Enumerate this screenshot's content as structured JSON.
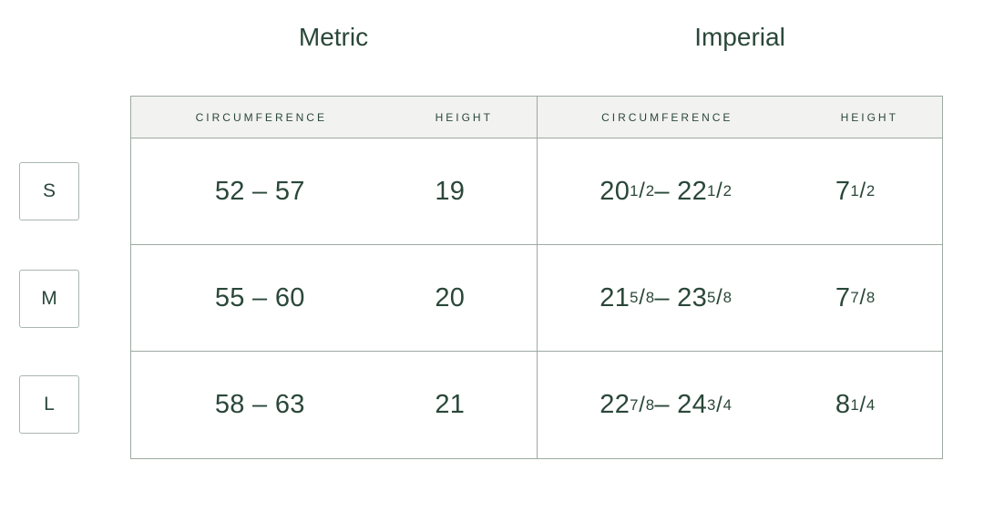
{
  "titles": {
    "metric": "Metric",
    "imperial": "Imperial"
  },
  "table": {
    "headers": {
      "metric_circumference": "CIRCUMFERENCE",
      "metric_height": "HEIGHT",
      "imperial_circumference": "CIRCUMFERENCE",
      "imperial_height": "HEIGHT"
    },
    "rows": [
      {
        "size": "S",
        "metric_circumference": "52 – 57",
        "metric_height": "19",
        "imperial_circumference": "20 1/2 – 22 1/2",
        "imperial_height": "7 1/2"
      },
      {
        "size": "M",
        "metric_circumference": "55 – 60",
        "metric_height": "20",
        "imperial_circumference": "21 5/8 – 23 5/8",
        "imperial_height": "7 7/8"
      },
      {
        "size": "L",
        "metric_circumference": "58 – 63",
        "metric_height": "21",
        "imperial_circumference": "22 7/8 – 24 3/4",
        "imperial_height": "8 1/4"
      }
    ]
  },
  "colors": {
    "text": "#2a4739",
    "border": "#9daaa2",
    "box_border": "#aab6af",
    "header_bg": "#f2f2f0",
    "background": "#ffffff"
  }
}
